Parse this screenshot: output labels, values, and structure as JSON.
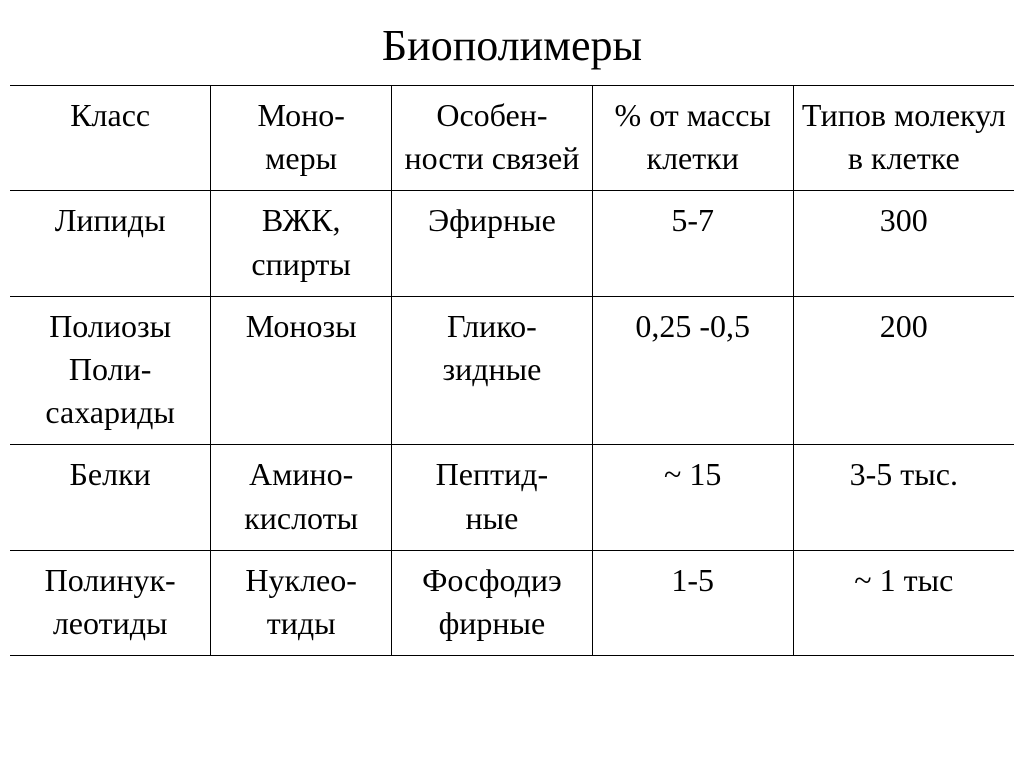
{
  "title": "Биополимеры",
  "style": {
    "title_fontsize": 44,
    "cell_fontsize": 32,
    "font_family": "Times New Roman",
    "border_color": "#000000",
    "background_color": "#ffffff",
    "text_color": "#000000",
    "col_widths_pct": [
      20,
      18,
      20,
      20,
      22
    ]
  },
  "table": {
    "headers": {
      "c1": "Класс",
      "c2": "Моно-\nмеры",
      "c3": "Особен-\nности связей",
      "c4": "% от массы клетки",
      "c5": "Типов молекул в клетке"
    },
    "rows": [
      {
        "c1": "Липиды",
        "c2": "ВЖК, спирты",
        "c3": "Эфирные",
        "c4": "5-7",
        "c5": "300"
      },
      {
        "c1": "Полиозы\nПоли-\nсахариды",
        "c2": "Монозы",
        "c3": "Глико-\nзидные",
        "c4": "0,25 -0,5",
        "c5": "200"
      },
      {
        "c1": "Белки",
        "c2": "Амино-\nкислоты",
        "c3": "Пептид-\nные",
        "c4": "~ 15",
        "c5": "3-5 тыс."
      },
      {
        "c1": "Полинук-\nлеотиды",
        "c2": "Нуклео-\nтиды",
        "c3": "Фосфодиэ\nфирные",
        "c4": "1-5",
        "c5": "~ 1 тыс"
      }
    ]
  }
}
